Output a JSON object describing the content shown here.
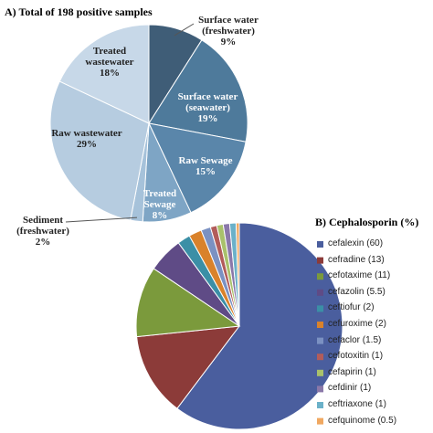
{
  "chart_data": [
    {
      "type": "pie",
      "title": "A) Total of 198 positive samples",
      "categories": [
        "Surface water (freshwater)",
        "Surface water (seawater)",
        "Raw Sewage",
        "Treated Sewage",
        "Sediment (freshwater)",
        "Raw wastewater",
        "Treated wastewater"
      ],
      "values": [
        9,
        19,
        15,
        8,
        2,
        29,
        18
      ],
      "value_labels": [
        "9%",
        "19%",
        "15%",
        "8%",
        "2%",
        "29%",
        "18%"
      ],
      "colors": [
        "#3f5d77",
        "#4e7a9b",
        "#5a86aa",
        "#7ea5c5",
        "#a6c2da",
        "#b6cce0",
        "#c7d8e8"
      ]
    },
    {
      "type": "pie",
      "title": "B) Cephalosporin (%)",
      "categories": [
        "cefalexin (60)",
        "cefradine (13)",
        "cefotaxime (11)",
        "cefazolin (5.5)",
        "ceftiofur (2)",
        "cefuroxime (2)",
        "cefaclor (1.5)",
        "cefotoxitin (1)",
        "cefapirin (1)",
        "cefdinir (1)",
        "ceftriaxone (1)",
        "cefquinome (0.5)"
      ],
      "values": [
        60,
        13,
        11,
        5.5,
        2,
        2,
        1.5,
        1,
        1,
        1,
        1,
        0.5
      ],
      "colors": [
        "#4a5e9e",
        "#8c3b39",
        "#7b9a3c",
        "#5f4b86",
        "#3b8fa6",
        "#d9822b",
        "#7b91c2",
        "#b25c5a",
        "#a9c16b",
        "#8a78a9",
        "#6bb1c9",
        "#f0a861"
      ],
      "legend": "right"
    }
  ]
}
